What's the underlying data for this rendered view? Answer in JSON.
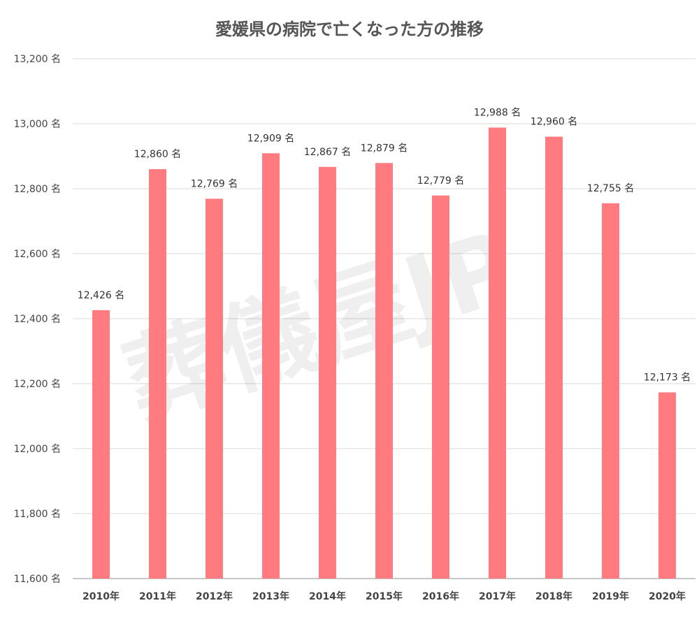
{
  "watermark": "葬儀屋JP",
  "colors": {
    "bar": "#FF7B80",
    "grid": "#D9D9D9",
    "text": "#444444"
  },
  "chart_data": {
    "type": "bar",
    "title": "愛媛県の病院で亡くなった方の推移",
    "xlabel": "",
    "ylabel": "",
    "unit": "名",
    "categories": [
      "2010年",
      "2011年",
      "2012年",
      "2013年",
      "2014年",
      "2015年",
      "2016年",
      "2017年",
      "2018年",
      "2019年",
      "2020年"
    ],
    "values": [
      12426,
      12860,
      12769,
      12909,
      12867,
      12879,
      12779,
      12988,
      12960,
      12755,
      12173
    ],
    "data_labels": [
      "12,426 名",
      "12,860 名",
      "12,769 名",
      "12,909 名",
      "12,867 名",
      "12,879 名",
      "12,779 名",
      "12,988 名",
      "12,960 名",
      "12,755 名",
      "12,173 名"
    ],
    "y_ticks": [
      11600,
      11800,
      12000,
      12200,
      12400,
      12600,
      12800,
      13000,
      13200
    ],
    "y_tick_labels": [
      "11,600 名",
      "11,800 名",
      "12,000 名",
      "12,200 名",
      "12,400 名",
      "12,600 名",
      "12,800 名",
      "13,000 名",
      "13,200 名"
    ],
    "ylim": [
      11600,
      13200
    ],
    "grid": true,
    "legend": "none"
  }
}
